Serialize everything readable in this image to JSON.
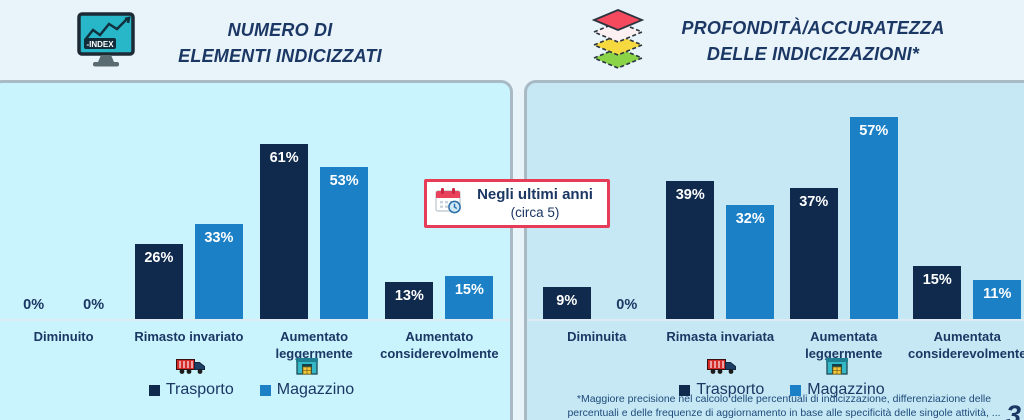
{
  "page": {
    "number": "3"
  },
  "colors": {
    "page_bg": "#e8f3fa",
    "panel_left_bg": "#c9f3fd",
    "panel_right_bg": "#c6e8f4",
    "panel_border": "#a9bac5",
    "bar_trasporto": "#0f2a4d",
    "bar_magazzino": "#1b80c5",
    "title_text": "#1b3764",
    "badge_border": "#e73c57",
    "value_label": "#ffffff"
  },
  "annotation": {
    "icon": "calendar-clock-icon",
    "title": "Negli ultimi anni",
    "subtitle": "(circa 5)"
  },
  "legend": {
    "items": [
      {
        "label": "Trasporto",
        "icon": "truck-icon",
        "color": "#0f2a4d"
      },
      {
        "label": "Magazzino",
        "icon": "warehouse-icon",
        "color": "#1b80c5"
      }
    ]
  },
  "footnote": {
    "lines": [
      "*Maggiore precisione nel calcolo delle percentuali di indicizzazione, differenziazione delle",
      "percentuali e delle  frequenze di aggiornamento in base alle specificità delle singole attività, ..."
    ]
  },
  "charts": [
    {
      "icon": "index-monitor-icon",
      "title_lines": [
        "NUMERO DI",
        "ELEMENTI INDICIZZATI"
      ]
    },
    {
      "icon": "layers-icon",
      "title_lines": [
        "PROFONDITÀ/ACCURATEZZA",
        "DELLE INDICIZZAZIONI*"
      ]
    }
  ],
  "chart_data": [
    {
      "type": "bar",
      "title": "NUMERO DI ELEMENTI INDICIZZATI",
      "unit": "%",
      "categories": [
        "Diminuito",
        "Rimasto invariato",
        "Aumentato leggermente",
        "Aumentato considerevolmente"
      ],
      "category_display": [
        [
          "Diminuito"
        ],
        [
          "Rimasto invariato"
        ],
        [
          "Aumentato",
          "leggermente"
        ],
        [
          "Aumentato",
          "considerevolmente"
        ]
      ],
      "series": [
        {
          "name": "Trasporto",
          "values": [
            0,
            26,
            61,
            13
          ]
        },
        {
          "name": "Magazzino",
          "values": [
            0,
            33,
            53,
            15
          ]
        }
      ],
      "ylim": [
        0,
        70
      ],
      "grid": false,
      "legend_position": "bottom"
    },
    {
      "type": "bar",
      "title": "PROFONDITÀ/ACCURATEZZA DELLE INDICIZZAZIONI*",
      "unit": "%",
      "categories": [
        "Diminuita",
        "Rimasta invariata",
        "Aumentata leggermente",
        "Aumentata considerevolmente"
      ],
      "category_display": [
        [
          "Diminuita"
        ],
        [
          "Rimasta invariata"
        ],
        [
          "Aumentata",
          "leggermente"
        ],
        [
          "Aumentata",
          "considerevolmente"
        ]
      ],
      "series": [
        {
          "name": "Trasporto",
          "values": [
            9,
            39,
            37,
            15
          ]
        },
        {
          "name": "Magazzino",
          "values": [
            0,
            32,
            57,
            11
          ]
        }
      ],
      "ylim": [
        0,
        70
      ],
      "grid": false,
      "legend_position": "bottom"
    }
  ]
}
